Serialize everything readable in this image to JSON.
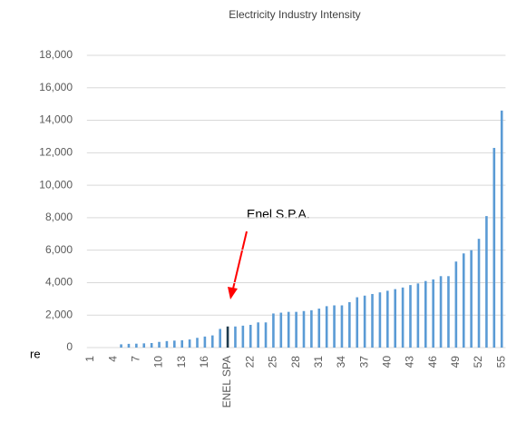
{
  "chart_data": {
    "type": "bar",
    "title": "Electricity Industry Intensity",
    "categories": [
      "1",
      null,
      null,
      "4",
      null,
      null,
      "7",
      null,
      null,
      "10",
      null,
      null,
      "13",
      null,
      null,
      "16",
      null,
      null,
      "ENEL SPA",
      null,
      null,
      "22",
      null,
      null,
      "25",
      null,
      null,
      "28",
      null,
      null,
      "31",
      null,
      null,
      "34",
      null,
      null,
      "37",
      null,
      null,
      "40",
      null,
      null,
      "43",
      null,
      null,
      "46",
      null,
      null,
      "49",
      null,
      null,
      "52",
      null,
      null,
      "55"
    ],
    "values": [
      0,
      0,
      0,
      0,
      200,
      230,
      240,
      260,
      280,
      350,
      400,
      430,
      450,
      500,
      600,
      680,
      750,
      1150,
      1300,
      1300,
      1350,
      1400,
      1550,
      1550,
      2100,
      2150,
      2200,
      2200,
      2250,
      2300,
      2400,
      2550,
      2600,
      2600,
      2800,
      3100,
      3200,
      3300,
      3400,
      3500,
      3600,
      3700,
      3850,
      3950,
      4100,
      4200,
      4400,
      4400,
      5300,
      5800,
      6000,
      6700,
      8100,
      12300,
      14600
    ],
    "color": "#5b9bd5",
    "highlight": {
      "index": 18,
      "color": "#1f3b4d"
    },
    "ylim": [
      0,
      18000
    ],
    "yticks": [
      0,
      {
        "value": 2000,
        "label": "2,000"
      },
      {
        "value": 4000,
        "label": "4,000"
      },
      {
        "value": 6000,
        "label": "6,000"
      },
      {
        "value": 8000,
        "label": "8,000"
      },
      {
        "value": 10000,
        "label": "10,000"
      },
      {
        "value": 12000,
        "label": "12,000"
      },
      {
        "value": 14000,
        "label": "14,000"
      },
      {
        "value": 16000,
        "label": "16,000"
      },
      {
        "value": 18000,
        "label": "18,000"
      }
    ],
    "grid": true,
    "annotation": "Enel S.P.A.",
    "clipped_text": "re"
  }
}
